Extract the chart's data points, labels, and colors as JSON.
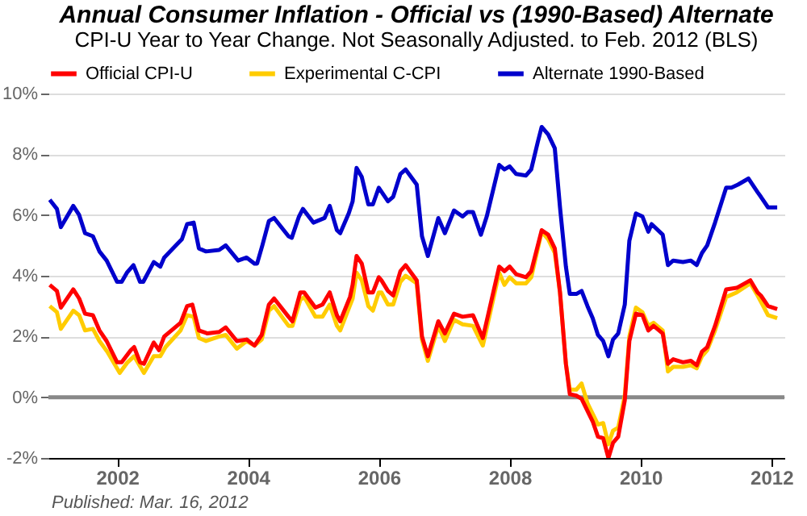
{
  "chart_data": {
    "type": "line",
    "title": "Annual Consumer Inflation - Official vs (1990-Based) Alternate",
    "subtitle": "CPI-U Year to Year Change. Not Seasonally Adjusted. to Feb. 2012  (BLS)",
    "annotations": [
      "Published: Mar. 16, 2012"
    ],
    "xlim": [
      2000.95,
      2012.2
    ],
    "xticks": [
      2002,
      2004,
      2006,
      2008,
      2010,
      2012
    ],
    "ylim": [
      -2,
      10
    ],
    "yticks": [
      {
        "value": -2,
        "label": "-2%"
      },
      {
        "value": 0,
        "label": "0%"
      },
      {
        "value": 2,
        "label": "2%"
      },
      {
        "value": 4,
        "label": "4%"
      },
      {
        "value": 6,
        "label": "6%"
      },
      {
        "value": 8,
        "label": "8%"
      },
      {
        "value": 10,
        "label": "10%"
      }
    ],
    "grid": "y",
    "legend": "top",
    "marker": "none",
    "line_style": "solid",
    "tick_labels": true,
    "ref_lines": [
      {
        "axis": "y",
        "value": 0,
        "color": "#888888"
      }
    ],
    "series": [
      {
        "name": "Official CPI-U",
        "color": "#ff0000",
        "x": [
          2000.97,
          2001.08,
          2001.14,
          2001.33,
          2001.42,
          2001.51,
          2001.63,
          2001.73,
          2001.84,
          2002.0,
          2002.07,
          2002.21,
          2002.26,
          2002.35,
          2002.41,
          2002.56,
          2002.64,
          2002.72,
          2002.97,
          2003.07,
          2003.15,
          2003.25,
          2003.38,
          2003.56,
          2003.66,
          2003.83,
          2003.98,
          2004.1,
          2004.21,
          2004.32,
          2004.4,
          2004.62,
          2004.68,
          2004.8,
          2004.86,
          2005.03,
          2005.14,
          2005.25,
          2005.36,
          2005.41,
          2005.56,
          2005.6,
          2005.66,
          2005.74,
          2005.84,
          2005.91,
          2006.0,
          2006.04,
          2006.14,
          2006.22,
          2006.33,
          2006.41,
          2006.58,
          2006.66,
          2006.75,
          2006.91,
          2007.01,
          2007.15,
          2007.28,
          2007.44,
          2007.59,
          2007.84,
          2007.92,
          2008.0,
          2008.1,
          2008.25,
          2008.33,
          2008.49,
          2008.59,
          2008.69,
          2008.77,
          2008.86,
          2008.92,
          2009.02,
          2009.1,
          2009.19,
          2009.27,
          2009.35,
          2009.43,
          2009.51,
          2009.58,
          2009.66,
          2009.76,
          2009.83,
          2009.93,
          2010.03,
          2010.12,
          2010.2,
          2010.34,
          2010.42,
          2010.5,
          2010.65,
          2010.77,
          2010.86,
          2010.94,
          2011.02,
          2011.14,
          2011.31,
          2011.47,
          2011.68,
          2011.79,
          2011.84,
          2011.95,
          2012.09
        ],
        "values": [
          3.7,
          3.5,
          2.95,
          3.55,
          3.25,
          2.75,
          2.7,
          2.2,
          1.85,
          1.15,
          1.15,
          1.55,
          1.65,
          1.15,
          1.1,
          1.8,
          1.55,
          2.0,
          2.45,
          3.0,
          3.05,
          2.2,
          2.1,
          2.15,
          2.3,
          1.85,
          1.9,
          1.7,
          2.05,
          3.05,
          3.25,
          2.65,
          2.5,
          3.45,
          3.45,
          2.95,
          3.05,
          3.45,
          2.7,
          2.5,
          3.3,
          3.7,
          4.65,
          4.4,
          3.45,
          3.45,
          3.95,
          3.85,
          3.5,
          3.35,
          4.15,
          4.35,
          3.85,
          2.0,
          1.35,
          2.5,
          2.1,
          2.75,
          2.65,
          2.7,
          1.95,
          4.3,
          4.15,
          4.3,
          4.05,
          3.95,
          4.15,
          5.5,
          5.35,
          4.9,
          3.45,
          1.1,
          0.1,
          0.05,
          -0.05,
          -0.45,
          -0.8,
          -1.3,
          -1.35,
          -2.0,
          -1.5,
          -1.3,
          -0.1,
          1.85,
          2.75,
          2.7,
          2.2,
          2.35,
          2.1,
          1.1,
          1.25,
          1.15,
          1.2,
          1.05,
          1.5,
          1.65,
          2.35,
          3.55,
          3.6,
          3.85,
          3.45,
          3.35,
          3.0,
          2.9
        ]
      },
      {
        "name": "Experimental C-CPI",
        "color": "#ffcc00",
        "x": [
          2000.97,
          2001.08,
          2001.14,
          2001.33,
          2001.42,
          2001.51,
          2001.63,
          2001.73,
          2001.85,
          2002.04,
          2002.16,
          2002.26,
          2002.41,
          2002.56,
          2002.66,
          2002.74,
          2002.97,
          2003.07,
          2003.17,
          2003.25,
          2003.36,
          2003.56,
          2003.66,
          2003.83,
          2003.98,
          2004.1,
          2004.21,
          2004.32,
          2004.4,
          2004.62,
          2004.68,
          2004.8,
          2004.86,
          2005.03,
          2005.14,
          2005.25,
          2005.36,
          2005.41,
          2005.6,
          2005.66,
          2005.74,
          2005.84,
          2005.91,
          2006.0,
          2006.04,
          2006.14,
          2006.22,
          2006.33,
          2006.41,
          2006.58,
          2006.66,
          2006.75,
          2006.91,
          2007.01,
          2007.15,
          2007.28,
          2007.44,
          2007.59,
          2007.84,
          2007.92,
          2008.0,
          2008.1,
          2008.25,
          2008.33,
          2008.49,
          2008.59,
          2008.69,
          2008.77,
          2008.86,
          2008.92,
          2009.02,
          2009.1,
          2009.19,
          2009.27,
          2009.35,
          2009.43,
          2009.51,
          2009.58,
          2009.66,
          2009.76,
          2009.83,
          2009.93,
          2010.03,
          2010.12,
          2010.2,
          2010.34,
          2010.42,
          2010.5,
          2010.65,
          2010.77,
          2010.86,
          2010.94,
          2011.02,
          2011.14,
          2011.31,
          2011.47,
          2011.68,
          2011.79,
          2011.84,
          2011.95,
          2012.09
        ],
        "values": [
          3.0,
          2.8,
          2.25,
          2.85,
          2.7,
          2.2,
          2.25,
          1.85,
          1.5,
          0.8,
          1.15,
          1.35,
          0.8,
          1.35,
          1.35,
          1.65,
          2.2,
          2.7,
          2.65,
          1.95,
          1.85,
          2.0,
          2.05,
          1.6,
          1.85,
          1.7,
          1.9,
          2.85,
          3.0,
          2.35,
          2.35,
          3.2,
          3.3,
          2.65,
          2.65,
          3.05,
          2.35,
          2.2,
          3.25,
          4.1,
          3.85,
          3.0,
          2.85,
          3.45,
          3.45,
          3.05,
          3.05,
          3.8,
          4.0,
          3.75,
          1.9,
          1.2,
          2.35,
          1.85,
          2.55,
          2.4,
          2.35,
          1.7,
          4.1,
          3.7,
          3.95,
          3.75,
          3.75,
          3.95,
          5.45,
          5.2,
          4.75,
          3.45,
          1.1,
          0.25,
          0.25,
          0.45,
          -0.2,
          -0.55,
          -0.9,
          -0.85,
          -1.55,
          -1.1,
          -1.0,
          0.05,
          2.0,
          2.95,
          2.8,
          2.35,
          2.45,
          2.2,
          0.85,
          1.0,
          1.0,
          1.05,
          0.95,
          1.35,
          1.55,
          2.2,
          3.3,
          3.45,
          3.75,
          3.35,
          3.15,
          2.7,
          2.6
        ]
      },
      {
        "name": "Alternate 1990-Based",
        "color": "#0000cc",
        "x": [
          2000.97,
          2001.08,
          2001.14,
          2001.33,
          2001.42,
          2001.51,
          2001.63,
          2001.73,
          2001.84,
          2002.0,
          2002.07,
          2002.15,
          2002.25,
          2002.35,
          2002.4,
          2002.56,
          2002.66,
          2002.72,
          2002.9,
          2002.99,
          2003.07,
          2003.17,
          2003.25,
          2003.36,
          2003.56,
          2003.66,
          2003.85,
          2003.98,
          2004.1,
          2004.14,
          2004.22,
          2004.32,
          2004.4,
          2004.62,
          2004.67,
          2004.78,
          2004.84,
          2005.0,
          2005.17,
          2005.25,
          2005.36,
          2005.41,
          2005.54,
          2005.6,
          2005.66,
          2005.74,
          2005.84,
          2005.91,
          2006.0,
          2006.14,
          2006.22,
          2006.33,
          2006.41,
          2006.58,
          2006.66,
          2006.75,
          2006.91,
          2007.01,
          2007.15,
          2007.28,
          2007.36,
          2007.44,
          2007.56,
          2007.65,
          2007.84,
          2007.92,
          2008.0,
          2008.1,
          2008.25,
          2008.33,
          2008.43,
          2008.49,
          2008.59,
          2008.69,
          2008.77,
          2008.86,
          2008.92,
          2009.02,
          2009.1,
          2009.19,
          2009.27,
          2009.35,
          2009.43,
          2009.51,
          2009.58,
          2009.66,
          2009.76,
          2009.83,
          2009.93,
          2010.03,
          2010.12,
          2010.17,
          2010.34,
          2010.42,
          2010.5,
          2010.65,
          2010.77,
          2010.86,
          2010.94,
          2011.02,
          2011.14,
          2011.31,
          2011.39,
          2011.49,
          2011.65,
          2011.79,
          2011.84,
          2011.95,
          2012.09
        ],
        "values": [
          6.5,
          6.2,
          5.6,
          6.3,
          6.0,
          5.4,
          5.3,
          4.8,
          4.5,
          3.8,
          3.8,
          4.1,
          4.35,
          3.8,
          3.8,
          4.45,
          4.3,
          4.6,
          5.0,
          5.2,
          5.7,
          5.75,
          4.9,
          4.8,
          4.85,
          5.0,
          4.5,
          4.6,
          4.4,
          4.4,
          5.0,
          5.8,
          5.9,
          5.3,
          5.25,
          5.95,
          6.2,
          5.75,
          5.9,
          6.3,
          5.5,
          5.4,
          6.05,
          6.45,
          7.55,
          7.25,
          6.35,
          6.35,
          6.9,
          6.45,
          6.6,
          7.35,
          7.5,
          7.0,
          5.3,
          4.65,
          5.9,
          5.4,
          6.15,
          5.95,
          6.1,
          6.1,
          5.35,
          5.95,
          7.65,
          7.5,
          7.6,
          7.35,
          7.3,
          7.5,
          8.4,
          8.9,
          8.65,
          8.2,
          6.25,
          4.3,
          3.4,
          3.4,
          3.5,
          3.0,
          2.6,
          2.05,
          1.85,
          1.35,
          1.9,
          2.1,
          3.05,
          5.15,
          6.05,
          5.95,
          5.45,
          5.7,
          5.35,
          4.35,
          4.5,
          4.45,
          4.5,
          4.35,
          4.75,
          5.0,
          5.75,
          6.9,
          6.9,
          7.0,
          7.2,
          6.75,
          6.6,
          6.25,
          6.25
        ]
      }
    ]
  }
}
